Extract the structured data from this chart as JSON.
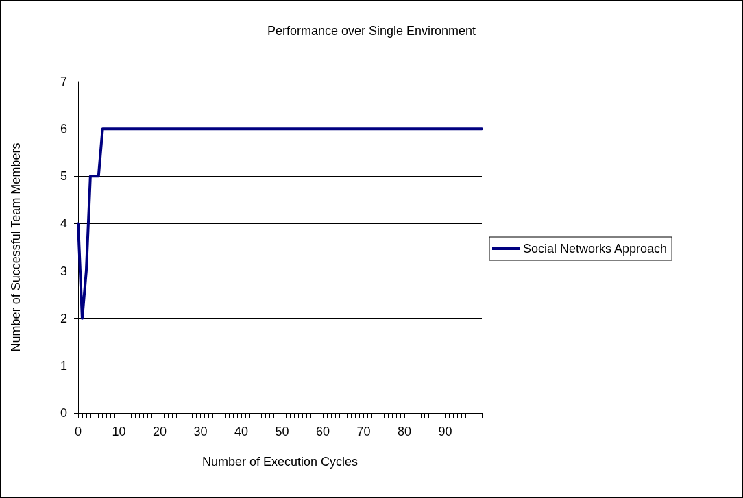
{
  "chart_data": {
    "type": "line",
    "title": "Performance over Single Environment",
    "xlabel": "Number of Execution Cycles",
    "ylabel": "Number of Successful Team Members",
    "categories": [
      "0",
      null,
      null,
      null,
      null,
      null,
      null,
      null,
      null,
      null,
      "10",
      null,
      null,
      null,
      null,
      null,
      null,
      null,
      null,
      null,
      "20",
      null,
      null,
      null,
      null,
      null,
      null,
      null,
      null,
      null,
      "30",
      null,
      null,
      null,
      null,
      null,
      null,
      null,
      null,
      null,
      "40",
      null,
      null,
      null,
      null,
      null,
      null,
      null,
      null,
      null,
      "50",
      null,
      null,
      null,
      null,
      null,
      null,
      null,
      null,
      null,
      "60",
      null,
      null,
      null,
      null,
      null,
      null,
      null,
      null,
      null,
      "70",
      null,
      null,
      null,
      null,
      null,
      null,
      null,
      null,
      null,
      "80",
      null,
      null,
      null,
      null,
      null,
      null,
      null,
      null,
      null,
      "90",
      null,
      null,
      null,
      null,
      null,
      null,
      null,
      null,
      null
    ],
    "series": [
      {
        "name": "Social Networks Approach",
        "color": "#000080",
        "values": [
          4,
          2,
          3,
          5,
          5,
          5,
          6,
          6,
          6,
          6,
          6,
          6,
          6,
          6,
          6,
          6,
          6,
          6,
          6,
          6,
          6,
          6,
          6,
          6,
          6,
          6,
          6,
          6,
          6,
          6,
          6,
          6,
          6,
          6,
          6,
          6,
          6,
          6,
          6,
          6,
          6,
          6,
          6,
          6,
          6,
          6,
          6,
          6,
          6,
          6,
          6,
          6,
          6,
          6,
          6,
          6,
          6,
          6,
          6,
          6,
          6,
          6,
          6,
          6,
          6,
          6,
          6,
          6,
          6,
          6,
          6,
          6,
          6,
          6,
          6,
          6,
          6,
          6,
          6,
          6,
          6,
          6,
          6,
          6,
          6,
          6,
          6,
          6,
          6,
          6,
          6,
          6,
          6,
          6,
          6,
          6,
          6,
          6,
          6,
          6
        ]
      }
    ],
    "ylim": [
      0,
      7
    ],
    "yticks": [
      0,
      1,
      2,
      3,
      4,
      5,
      6,
      7
    ],
    "grid": "y",
    "legend": "right",
    "marker": "none",
    "line_style": "solid"
  }
}
